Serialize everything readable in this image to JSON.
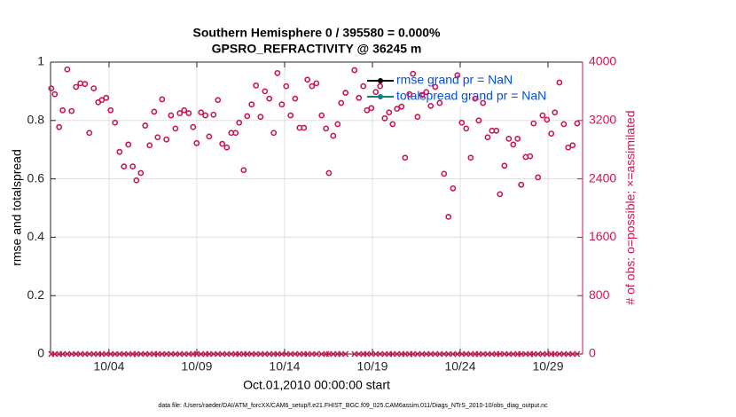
{
  "chart_data": {
    "type": "scatter",
    "title": [
      "Southern Hemisphere 0 / 395580 = 0.000%",
      "GPSRO_REFRACTIVITY @ 36245 m"
    ],
    "ylabel": "rmse and totalspread",
    "y2label": "# of obs: o=possible; ×=assimilated",
    "xlabel": "Oct.01,2010 00:00:00 start",
    "footnote": "data file: /Users/raeder/DAI/ATM_forcXX/CAM6_setup/f.e21.FHIST_BGC.f09_025.CAM6assim.011/Diags_NTrS_2010-10/obs_diag_output.nc",
    "legend": [
      {
        "label": "rmse grand pr = NaN",
        "color": "#000000"
      },
      {
        "label": "totalspread grand pr = NaN",
        "color": "#0a8080"
      }
    ],
    "xlim": [
      0.67,
      30.97
    ],
    "xticks": [
      {
        "value": 4,
        "label": "10/04"
      },
      {
        "value": 9,
        "label": "10/09"
      },
      {
        "value": 14,
        "label": "10/14"
      },
      {
        "value": 19,
        "label": "10/19"
      },
      {
        "value": 24,
        "label": "10/24"
      },
      {
        "value": 29,
        "label": "10/29"
      }
    ],
    "ylim": [
      0,
      1
    ],
    "yticks": [
      0,
      0.2,
      0.4,
      0.6,
      0.8,
      1
    ],
    "y2lim": [
      0,
      4000
    ],
    "y2ticks": [
      0,
      800,
      1600,
      2400,
      3200,
      4000
    ],
    "grid": true,
    "x": [
      0.71,
      0.91,
      1.16,
      1.36,
      1.62,
      1.87,
      2.12,
      2.37,
      2.63,
      2.88,
      3.13,
      3.38,
      3.59,
      3.84,
      4.09,
      4.34,
      4.6,
      4.85,
      5.1,
      5.35,
      5.56,
      5.81,
      6.06,
      6.31,
      6.57,
      6.77,
      7.02,
      7.27,
      7.53,
      7.78,
      8.03,
      8.28,
      8.54,
      8.79,
      8.99,
      9.24,
      9.49,
      9.7,
      9.95,
      10.2,
      10.45,
      10.71,
      10.96,
      11.21,
      11.41,
      11.67,
      11.87,
      12.12,
      12.37,
      12.63,
      12.88,
      13.13,
      13.38,
      13.59,
      13.84,
      14.09,
      14.34,
      14.6,
      14.85,
      15.1,
      15.3,
      15.56,
      15.81,
      16.11,
      16.36,
      16.52,
      16.77,
      17.02,
      17.22,
      17.47,
      17.98,
      18.23,
      18.48,
      18.69,
      18.94,
      19.19,
      19.44,
      19.7,
      19.95,
      20.15,
      20.4,
      20.66,
      20.86,
      21.11,
      21.31,
      21.57,
      21.82,
      22.07,
      22.32,
      22.58,
      22.83,
      23.08,
      23.33,
      23.59,
      23.84,
      24.09,
      24.34,
      24.6,
      24.85,
      25.05,
      25.3,
      25.56,
      25.81,
      26.06,
      26.26,
      26.52,
      26.77,
      27.02,
      27.27,
      27.47,
      27.73,
      27.98,
      28.18,
      28.43,
      28.69,
      28.94,
      29.19,
      29.39,
      29.65,
      29.9,
      30.15,
      30.4,
      30.66
    ],
    "series": [
      {
        "marker": "o",
        "color": "#c8175a",
        "axis": "y2",
        "values": [
          3640,
          3560,
          3110,
          3340,
          3900,
          3330,
          3660,
          3710,
          3700,
          3030,
          3640,
          3450,
          3480,
          3510,
          3340,
          3170,
          2770,
          2570,
          2870,
          2570,
          2380,
          2480,
          3130,
          2860,
          3320,
          2970,
          3490,
          2940,
          3270,
          3090,
          3300,
          3340,
          3300,
          3110,
          2890,
          3310,
          3270,
          2980,
          3280,
          3480,
          2880,
          2830,
          3030,
          3030,
          3170,
          2520,
          3260,
          3420,
          3680,
          3250,
          3600,
          3500,
          3030,
          3850,
          3420,
          3670,
          3270,
          3500,
          3100,
          3100,
          3760,
          3670,
          3710,
          3270,
          3090,
          2480,
          2990,
          3150,
          3440,
          3580,
          3890,
          3510,
          3670,
          3340,
          3370,
          3590,
          3670,
          3230,
          3310,
          3150,
          3360,
          3390,
          2690,
          3560,
          3840,
          3250,
          3550,
          3590,
          3400,
          3660,
          3440,
          2470,
          1880,
          2270,
          3820,
          3170,
          3090,
          2690,
          3500,
          3200,
          3440,
          2970,
          3060,
          3060,
          2190,
          2580,
          2950,
          2870,
          2950,
          2320,
          2700,
          2710,
          3160,
          2420,
          3270,
          3210,
          3020,
          3310,
          3720,
          3150,
          2830,
          2860,
          3160
        ]
      },
      {
        "marker": "x",
        "color": "#c8175a",
        "axis": "y2",
        "values": [
          0,
          0,
          0,
          0,
          0,
          0,
          0,
          0,
          0,
          0,
          0,
          0,
          0,
          0,
          0,
          0,
          0,
          0,
          0,
          0,
          0,
          0,
          0,
          0,
          0,
          0,
          0,
          0,
          0,
          0,
          0,
          0,
          0,
          0,
          0,
          0,
          0,
          0,
          0,
          0,
          0,
          0,
          0,
          0,
          0,
          0,
          0,
          0,
          0,
          0,
          0,
          0,
          0,
          0,
          0,
          0,
          0,
          0,
          0,
          0,
          0,
          0,
          0,
          0,
          0,
          0,
          0,
          0,
          0,
          0,
          0,
          0,
          0,
          0,
          0,
          0,
          0,
          0,
          0,
          0,
          0,
          0,
          0,
          0,
          0,
          0,
          0,
          0,
          0,
          0,
          0,
          0,
          0,
          0,
          0,
          0,
          0,
          0,
          0,
          0,
          0,
          0,
          0,
          0,
          0,
          0,
          0,
          0,
          0,
          0,
          0,
          0,
          0,
          0,
          0,
          0,
          0,
          0,
          0,
          0,
          0,
          0,
          0
        ]
      }
    ]
  }
}
